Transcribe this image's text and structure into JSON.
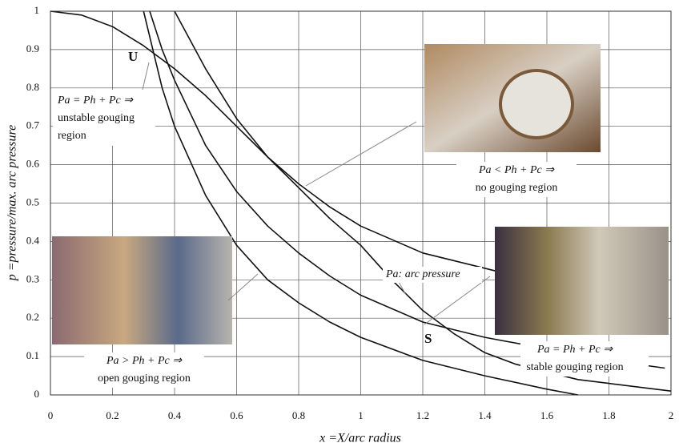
{
  "chart_data": {
    "type": "line",
    "xlabel": "x =X/arc radius",
    "ylabel": "p =pressure/max. arc pressure",
    "xlim": [
      0,
      2
    ],
    "xticks": [
      0,
      0.2,
      0.4,
      0.6,
      0.8,
      1,
      1.2,
      1.4,
      1.6,
      1.8,
      2
    ],
    "ylim": [
      0,
      1
    ],
    "yticks": [
      0,
      0.1,
      0.2,
      0.3,
      0.4,
      0.5,
      0.6,
      0.7,
      0.8,
      0.9,
      1
    ],
    "grid": true,
    "series": [
      {
        "color": "#111111",
        "x": [
          0,
          0.1,
          0.2,
          0.3,
          0.4,
          0.5,
          0.6,
          0.7,
          0.8,
          0.9,
          1.0,
          1.1,
          1.2,
          1.3,
          1.4,
          1.5,
          1.6,
          1.7,
          1.8,
          1.9,
          2.0
        ],
        "values": [
          1,
          0.99,
          0.96,
          0.91,
          0.85,
          0.78,
          0.7,
          0.62,
          0.54,
          0.46,
          0.39,
          0.3,
          0.22,
          0.16,
          0.11,
          0.08,
          0.06,
          0.04,
          0.03,
          0.02,
          0.01
        ]
      },
      {
        "color": "#111111",
        "x": [
          0.3,
          0.33,
          0.36,
          0.4,
          0.5,
          0.6,
          0.7,
          0.8,
          0.9,
          1.0,
          1.2,
          1.4,
          1.6,
          1.7
        ],
        "values": [
          1,
          0.9,
          0.8,
          0.7,
          0.52,
          0.39,
          0.3,
          0.24,
          0.19,
          0.15,
          0.09,
          0.05,
          0.015,
          0
        ]
      },
      {
        "color": "#111111",
        "x": [
          0.32,
          0.36,
          0.4,
          0.5,
          0.6,
          0.7,
          0.8,
          0.9,
          1.0,
          1.2,
          1.4,
          1.6,
          1.8,
          1.98
        ],
        "values": [
          1,
          0.9,
          0.82,
          0.65,
          0.53,
          0.44,
          0.37,
          0.31,
          0.26,
          0.19,
          0.15,
          0.12,
          0.09,
          0.07
        ]
      },
      {
        "color": "#111111",
        "x": [
          0.4,
          0.5,
          0.6,
          0.7,
          0.8,
          0.9,
          1.0,
          1.2,
          1.45
        ],
        "values": [
          1,
          0.85,
          0.72,
          0.62,
          0.55,
          0.49,
          0.44,
          0.37,
          0.32
        ]
      }
    ],
    "annotations": {
      "u": "U",
      "s": "S",
      "unstable": [
        "Pa = Ph + Pc ⇒",
        "unstable gouging",
        "region"
      ],
      "none": [
        "Pa < Ph + Pc ⇒",
        "no gouging region"
      ],
      "open": [
        "Pa > Ph + Pc ⇒",
        "open gouging region"
      ],
      "arc": "Pa: arc pressure",
      "stable": [
        "Pa = Ph + Pc ⇒",
        "stable gouging region"
      ]
    }
  }
}
